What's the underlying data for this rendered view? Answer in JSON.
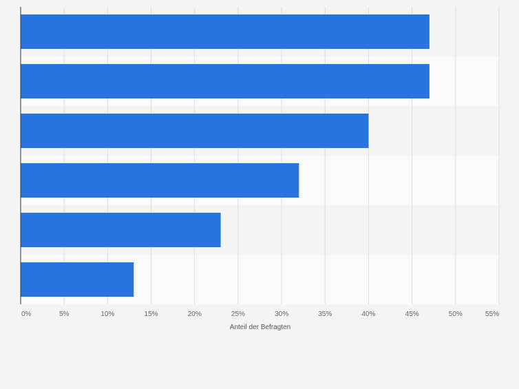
{
  "chart_data": {
    "type": "bar",
    "orientation": "horizontal",
    "categories": [
      "",
      "",
      "",
      "",
      "",
      ""
    ],
    "values": [
      47,
      47,
      40,
      32,
      23,
      13
    ],
    "xlim": [
      0,
      55
    ],
    "xticks": [
      0,
      5,
      10,
      15,
      20,
      25,
      30,
      35,
      40,
      45,
      50,
      55
    ],
    "tick_labels": [
      "0%",
      "5%",
      "10%",
      "15%",
      "20%",
      "25%",
      "30%",
      "35%",
      "40%",
      "45%",
      "50%",
      "55%"
    ],
    "xlabel": "Anteil der Befragten",
    "unit": "%",
    "grid": true,
    "colors": {
      "bar": "#2876dd",
      "band_dark": "#f4f4f4",
      "band_light": "#fafafa",
      "grid": "#dddddd",
      "axis": "#333333"
    }
  }
}
